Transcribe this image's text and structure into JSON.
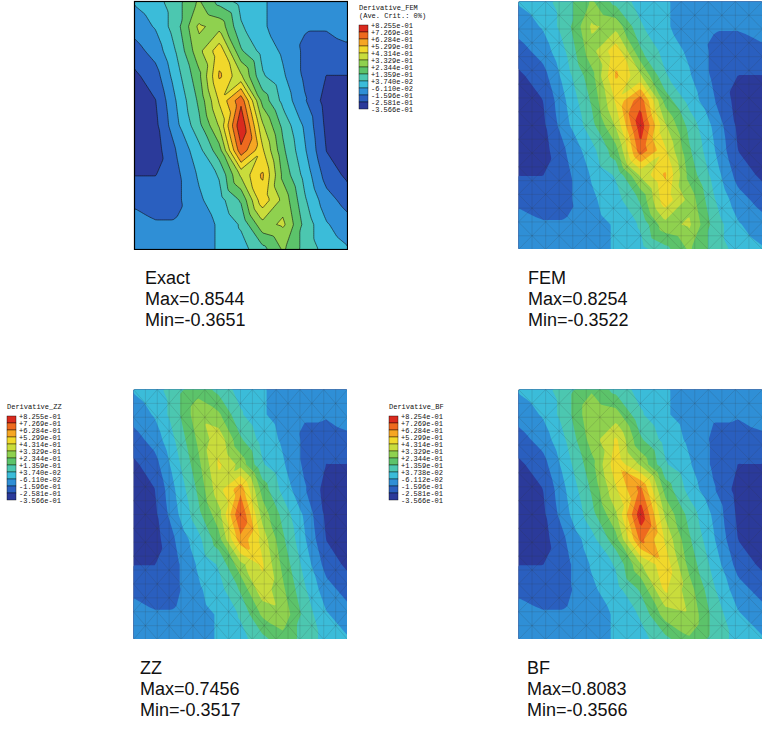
{
  "chart_data": [
    {
      "type": "contour",
      "title": "Exact",
      "stats": [
        "Max=0.8544",
        "Min=-0.3651"
      ],
      "levels": [
        -0.3566,
        -0.2581,
        -0.1596,
        -0.0611,
        0.0374,
        0.1359,
        0.2344,
        0.3329,
        0.4314,
        0.5299,
        0.6284,
        0.7269,
        0.8255
      ],
      "colors": [
        "#2b3a9a",
        "#2a5fbf",
        "#2f8fd6",
        "#3bbcd9",
        "#4cc7b0",
        "#5cc36a",
        "#8fd14f",
        "#c9dc3c",
        "#f1d82b",
        "#f6a623",
        "#ee6a1f",
        "#d92a1e"
      ],
      "cells": [
        [
          -0.05,
          0.0,
          0.1,
          0.25,
          0.1,
          0.0,
          -0.05,
          -0.1,
          -0.1,
          -0.1,
          -0.08
        ],
        [
          -0.12,
          -0.05,
          0.1,
          0.35,
          0.3,
          0.05,
          -0.05,
          -0.1,
          -0.15,
          -0.15,
          -0.12
        ],
        [
          -0.2,
          -0.12,
          0.05,
          0.3,
          0.5,
          0.15,
          0.0,
          -0.08,
          -0.18,
          -0.2,
          -0.18
        ],
        [
          -0.28,
          -0.2,
          0.0,
          0.2,
          0.55,
          0.35,
          0.05,
          -0.05,
          -0.18,
          -0.26,
          -0.26
        ],
        [
          -0.34,
          -0.26,
          -0.05,
          0.15,
          0.45,
          0.7,
          0.2,
          0.0,
          -0.15,
          -0.3,
          -0.33
        ],
        [
          -0.35,
          -0.28,
          -0.08,
          0.1,
          0.35,
          0.82,
          0.35,
          0.1,
          -0.08,
          -0.28,
          -0.35
        ],
        [
          -0.33,
          -0.3,
          -0.15,
          0.0,
          0.2,
          0.7,
          0.45,
          0.15,
          -0.05,
          -0.26,
          -0.34
        ],
        [
          -0.26,
          -0.26,
          -0.18,
          -0.05,
          0.05,
          0.35,
          0.55,
          0.2,
          0.0,
          -0.2,
          -0.28
        ],
        [
          -0.18,
          -0.2,
          -0.18,
          -0.08,
          0.0,
          0.15,
          0.5,
          0.3,
          0.05,
          -0.12,
          -0.2
        ],
        [
          -0.12,
          -0.15,
          -0.15,
          -0.1,
          -0.05,
          0.05,
          0.3,
          0.35,
          0.1,
          -0.05,
          -0.12
        ],
        [
          -0.08,
          -0.1,
          -0.1,
          -0.1,
          -0.05,
          0.0,
          0.1,
          0.25,
          0.1,
          0.0,
          -0.05
        ]
      ]
    },
    {
      "type": "mesh",
      "title": "FEM",
      "stats": [
        "Max=0.8254",
        "Min=-0.3522"
      ],
      "colorbar": {
        "title": [
          "Derivative_FEM",
          "(Ave. Crit.: 0%)"
        ],
        "ticks": [
          {
            "value": -0.3566,
            "label": "-3.566e-01"
          },
          {
            "value": -0.2581,
            "label": "-2.581e-01"
          },
          {
            "value": -0.1596,
            "label": "-1.596e-01"
          },
          {
            "value": -0.0611,
            "label": "-6.110e-02"
          },
          {
            "value": 0.0374,
            "label": "+3.740e-02"
          },
          {
            "value": 0.1359,
            "label": "+1.359e-01"
          },
          {
            "value": 0.2344,
            "label": "+2.344e-01"
          },
          {
            "value": 0.3329,
            "label": "+3.329e-01"
          },
          {
            "value": 0.4314,
            "label": "+4.314e-01"
          },
          {
            "value": 0.5299,
            "label": "+5.299e-01"
          },
          {
            "value": 0.6284,
            "label": "+6.284e-01"
          },
          {
            "value": 0.7269,
            "label": "+7.269e-01"
          },
          {
            "value": 0.8255,
            "label": "+8.255e-01"
          }
        ]
      },
      "colors": [
        "#2b3a9a",
        "#2a5fbf",
        "#2f8fd6",
        "#3bbcd9",
        "#4cc7b0",
        "#5cc36a",
        "#8fd14f",
        "#c9dc3c",
        "#f1d82b",
        "#f6a623",
        "#ee6a1f",
        "#d92a1e"
      ],
      "cells": [
        [
          -0.05,
          0.0,
          0.1,
          0.25,
          0.1,
          0.0,
          -0.05,
          -0.1,
          -0.1,
          -0.1,
          -0.08
        ],
        [
          -0.12,
          -0.05,
          0.1,
          0.35,
          0.3,
          0.05,
          -0.05,
          -0.1,
          -0.15,
          -0.15,
          -0.12
        ],
        [
          -0.2,
          -0.12,
          0.05,
          0.3,
          0.5,
          0.15,
          0.0,
          -0.08,
          -0.18,
          -0.2,
          -0.18
        ],
        [
          -0.28,
          -0.2,
          0.0,
          0.2,
          0.55,
          0.35,
          0.05,
          -0.05,
          -0.18,
          -0.26,
          -0.26
        ],
        [
          -0.34,
          -0.26,
          -0.05,
          0.15,
          0.45,
          0.7,
          0.2,
          0.0,
          -0.15,
          -0.3,
          -0.33
        ],
        [
          -0.35,
          -0.28,
          -0.08,
          0.1,
          0.35,
          0.8,
          0.35,
          0.1,
          -0.08,
          -0.28,
          -0.35
        ],
        [
          -0.33,
          -0.3,
          -0.15,
          0.0,
          0.2,
          0.7,
          0.45,
          0.15,
          -0.05,
          -0.26,
          -0.34
        ],
        [
          -0.26,
          -0.26,
          -0.18,
          -0.05,
          0.05,
          0.35,
          0.55,
          0.2,
          0.0,
          -0.2,
          -0.28
        ],
        [
          -0.18,
          -0.2,
          -0.18,
          -0.08,
          0.0,
          0.15,
          0.5,
          0.3,
          0.05,
          -0.12,
          -0.2
        ],
        [
          -0.12,
          -0.15,
          -0.15,
          -0.1,
          -0.05,
          0.05,
          0.3,
          0.35,
          0.1,
          -0.05,
          -0.12
        ],
        [
          -0.08,
          -0.1,
          -0.1,
          -0.1,
          -0.05,
          0.0,
          0.1,
          0.25,
          0.1,
          0.0,
          -0.05
        ]
      ]
    },
    {
      "type": "mesh",
      "title": "ZZ",
      "stats": [
        "Max=0.7456",
        "Min=-0.3517"
      ],
      "colorbar": {
        "title": [
          "Derivative_ZZ"
        ],
        "ticks": [
          {
            "value": -0.3566,
            "label": "-3.566e-01"
          },
          {
            "value": -0.2581,
            "label": "-2.581e-01"
          },
          {
            "value": -0.1596,
            "label": "-1.596e-01"
          },
          {
            "value": -0.0611,
            "label": "-6.110e-02"
          },
          {
            "value": 0.0374,
            "label": "+3.740e-02"
          },
          {
            "value": 0.1359,
            "label": "+1.359e-01"
          },
          {
            "value": 0.2344,
            "label": "+2.344e-01"
          },
          {
            "value": 0.3329,
            "label": "+3.329e-01"
          },
          {
            "value": 0.4314,
            "label": "+4.314e-01"
          },
          {
            "value": 0.5299,
            "label": "+5.299e-01"
          },
          {
            "value": 0.6284,
            "label": "+6.284e-01"
          },
          {
            "value": 0.7269,
            "label": "+7.269e-01"
          },
          {
            "value": 0.8255,
            "label": "+8.255e-01"
          }
        ]
      },
      "colors": [
        "#2b3a9a",
        "#2a5fbf",
        "#2f8fd6",
        "#3bbcd9",
        "#4cc7b0",
        "#5cc36a",
        "#8fd14f",
        "#c9dc3c",
        "#f1d82b",
        "#f6a623",
        "#ee6a1f",
        "#d92a1e"
      ],
      "cells": [
        [
          -0.05,
          0.0,
          0.1,
          0.2,
          0.1,
          0.0,
          -0.05,
          -0.1,
          -0.1,
          -0.1,
          -0.08
        ],
        [
          -0.12,
          -0.05,
          0.1,
          0.3,
          0.25,
          0.05,
          -0.05,
          -0.1,
          -0.15,
          -0.15,
          -0.12
        ],
        [
          -0.2,
          -0.12,
          0.05,
          0.25,
          0.4,
          0.15,
          0.0,
          -0.08,
          -0.18,
          -0.2,
          -0.18
        ],
        [
          -0.28,
          -0.2,
          0.0,
          0.2,
          0.45,
          0.3,
          0.05,
          -0.05,
          -0.18,
          -0.26,
          -0.26
        ],
        [
          -0.34,
          -0.26,
          -0.05,
          0.15,
          0.4,
          0.6,
          0.2,
          0.0,
          -0.15,
          -0.3,
          -0.33
        ],
        [
          -0.35,
          -0.28,
          -0.08,
          0.1,
          0.3,
          0.74,
          0.3,
          0.1,
          -0.08,
          -0.28,
          -0.35
        ],
        [
          -0.33,
          -0.3,
          -0.15,
          0.0,
          0.2,
          0.6,
          0.4,
          0.15,
          -0.05,
          -0.26,
          -0.34
        ],
        [
          -0.26,
          -0.26,
          -0.18,
          -0.05,
          0.05,
          0.3,
          0.45,
          0.2,
          0.0,
          -0.2,
          -0.28
        ],
        [
          -0.18,
          -0.2,
          -0.18,
          -0.08,
          0.0,
          0.15,
          0.4,
          0.25,
          0.05,
          -0.12,
          -0.2
        ],
        [
          -0.12,
          -0.15,
          -0.15,
          -0.1,
          -0.05,
          0.05,
          0.25,
          0.3,
          0.1,
          -0.05,
          -0.12
        ],
        [
          -0.08,
          -0.1,
          -0.1,
          -0.1,
          -0.05,
          0.0,
          0.1,
          0.2,
          0.1,
          0.0,
          -0.05
        ]
      ]
    },
    {
      "type": "mesh",
      "title": "BF",
      "stats": [
        "Max=0.8083",
        "Min=-0.3566"
      ],
      "colorbar": {
        "title": [
          "Derivative_BF"
        ],
        "ticks": [
          {
            "value": -0.3566,
            "label": "-3.566e-01"
          },
          {
            "value": -0.2581,
            "label": "-2.581e-01"
          },
          {
            "value": -0.1596,
            "label": "-1.596e-01"
          },
          {
            "value": -0.06112,
            "label": "-6.112e-02"
          },
          {
            "value": 0.03738,
            "label": "+3.738e-02"
          },
          {
            "value": 0.1359,
            "label": "+1.359e-01"
          },
          {
            "value": 0.2344,
            "label": "+2.344e-01"
          },
          {
            "value": 0.3329,
            "label": "+3.329e-01"
          },
          {
            "value": 0.4314,
            "label": "+4.314e-01"
          },
          {
            "value": 0.5299,
            "label": "+5.299e-01"
          },
          {
            "value": 0.6284,
            "label": "+6.284e-01"
          },
          {
            "value": 0.7269,
            "label": "+7.269e-01"
          },
          {
            "value": 0.8254,
            "label": "+8.254e-01"
          }
        ]
      },
      "colors": [
        "#2b3a9a",
        "#2a5fbf",
        "#2f8fd6",
        "#3bbcd9",
        "#4cc7b0",
        "#5cc36a",
        "#8fd14f",
        "#c9dc3c",
        "#f1d82b",
        "#f6a623",
        "#ee6a1f",
        "#d92a1e"
      ],
      "cells": [
        [
          -0.05,
          0.0,
          0.1,
          0.22,
          0.1,
          0.0,
          -0.05,
          -0.1,
          -0.1,
          -0.1,
          -0.08
        ],
        [
          -0.12,
          -0.05,
          0.1,
          0.32,
          0.28,
          0.05,
          -0.05,
          -0.1,
          -0.15,
          -0.15,
          -0.12
        ],
        [
          -0.2,
          -0.12,
          0.05,
          0.28,
          0.45,
          0.15,
          0.0,
          -0.08,
          -0.18,
          -0.2,
          -0.18
        ],
        [
          -0.28,
          -0.2,
          0.0,
          0.2,
          0.5,
          0.32,
          0.05,
          -0.05,
          -0.18,
          -0.26,
          -0.26
        ],
        [
          -0.34,
          -0.26,
          -0.05,
          0.15,
          0.42,
          0.66,
          0.2,
          0.0,
          -0.15,
          -0.3,
          -0.33
        ],
        [
          -0.35,
          -0.28,
          -0.08,
          0.1,
          0.32,
          0.8,
          0.32,
          0.1,
          -0.08,
          -0.28,
          -0.35
        ],
        [
          -0.33,
          -0.3,
          -0.15,
          0.0,
          0.2,
          0.66,
          0.42,
          0.15,
          -0.05,
          -0.26,
          -0.34
        ],
        [
          -0.26,
          -0.26,
          -0.18,
          -0.05,
          0.05,
          0.32,
          0.5,
          0.2,
          0.0,
          -0.2,
          -0.28
        ],
        [
          -0.18,
          -0.2,
          -0.18,
          -0.08,
          0.0,
          0.15,
          0.45,
          0.28,
          0.05,
          -0.12,
          -0.2
        ],
        [
          -0.12,
          -0.15,
          -0.15,
          -0.1,
          -0.05,
          0.05,
          0.28,
          0.32,
          0.1,
          -0.05,
          -0.12
        ],
        [
          -0.08,
          -0.1,
          -0.1,
          -0.1,
          -0.05,
          0.0,
          0.1,
          0.22,
          0.1,
          0.0,
          -0.05
        ]
      ]
    }
  ]
}
